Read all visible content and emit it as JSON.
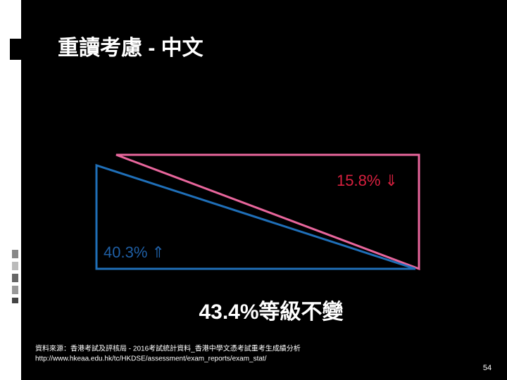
{
  "slide": {
    "title": "重讀考慮 - 中文",
    "labels": {
      "decrease": "15.8% ⇓",
      "increase": "40.3% ⇑",
      "unchanged": "43.4%等級不變"
    },
    "source": [
      "資料來源：香港考試及評核局 - 2016考試統計資料_香港中學文憑考試重考生成績分析",
      "http://www.hkeaa.edu.hk/tc/HKDSE/assessment/exam_reports/exam_stat/"
    ],
    "page_number": "54"
  }
}
